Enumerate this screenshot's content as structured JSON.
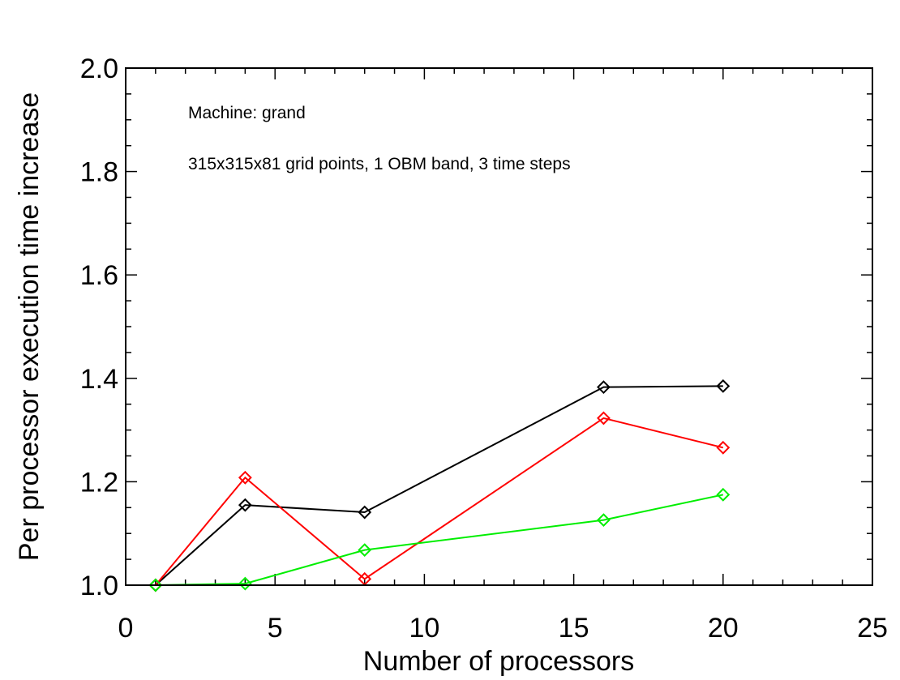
{
  "chart_data": {
    "type": "line",
    "title": "",
    "xlabel": "Number of processors",
    "ylabel": "Per processor execution time increase",
    "xlim": [
      0,
      25
    ],
    "ylim": [
      1.0,
      2.0
    ],
    "xticks": [
      0,
      5,
      10,
      15,
      20,
      25
    ],
    "xtick_labels": [
      "0",
      "5",
      "10",
      "15",
      "20",
      "25"
    ],
    "yticks": [
      1.0,
      1.2,
      1.4,
      1.6,
      1.8,
      2.0
    ],
    "ytick_labels": [
      "1.0",
      "1.2",
      "1.4",
      "1.6",
      "1.8",
      "2.0"
    ],
    "annotations": [
      "Machine: grand",
      "315x315x81 grid points, 1 OBM band, 3 time steps"
    ],
    "grid": false,
    "legend": "none",
    "marker": "diamond",
    "x": [
      1,
      4,
      8,
      16,
      20
    ],
    "series": [
      {
        "color": "#000000",
        "values": [
          1.0,
          1.155,
          1.141,
          1.383,
          1.385
        ]
      },
      {
        "color": "#ff0000",
        "values": [
          1.0,
          1.208,
          1.012,
          1.323,
          1.266
        ]
      },
      {
        "color": "#00ee00",
        "values": [
          1.0,
          1.003,
          1.068,
          1.126,
          1.175
        ]
      }
    ]
  }
}
